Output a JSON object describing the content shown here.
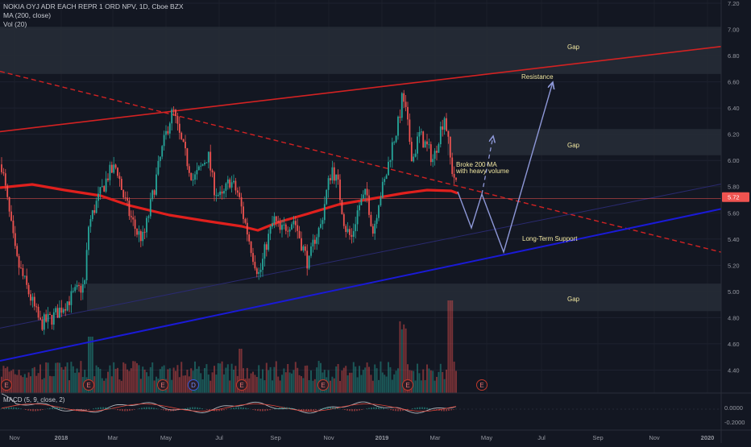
{
  "header": {
    "symbol_line": "NOKIA OYJ ADR EACH REPR 1 ORD NPV, 1D, Cboe BZX",
    "ma_line": "MA (200, close)",
    "vol_line": "Vol (20)",
    "macd_line": "MACD (5, 9, close, 2)"
  },
  "chart_data": {
    "type": "candlestick",
    "ylim": [
      4.2,
      7.2
    ],
    "y_ticks": [
      "7.20",
      "7.00",
      "6.80",
      "6.60",
      "6.40",
      "6.20",
      "6.00",
      "5.80",
      "5.60",
      "5.40",
      "5.20",
      "5.00",
      "4.80",
      "4.60",
      "4.40"
    ],
    "x_ticks": [
      "Nov",
      "2018",
      "Mar",
      "May",
      "Jul",
      "Sep",
      "Nov",
      "2019",
      "Mar",
      "May",
      "Jul",
      "Sep",
      "Nov",
      "2020"
    ],
    "last_price": "5.72",
    "macd_ticks": [
      "0.0000",
      "-0.2000"
    ],
    "price_path": [
      [
        0,
        6.05
      ],
      [
        10,
        5.65
      ],
      [
        20,
        5.25
      ],
      [
        35,
        5.0
      ],
      [
        50,
        4.75
      ],
      [
        65,
        4.8
      ],
      [
        80,
        4.9
      ],
      [
        95,
        5.0
      ],
      [
        105,
        5.05
      ],
      [
        110,
        5.5
      ],
      [
        118,
        5.65
      ],
      [
        125,
        5.75
      ],
      [
        135,
        5.9
      ],
      [
        145,
        5.95
      ],
      [
        152,
        5.75
      ],
      [
        160,
        5.6
      ],
      [
        170,
        5.45
      ],
      [
        178,
        5.4
      ],
      [
        190,
        5.75
      ],
      [
        200,
        6.05
      ],
      [
        210,
        6.3
      ],
      [
        215,
        6.38
      ],
      [
        222,
        6.2
      ],
      [
        232,
        6.0
      ],
      [
        240,
        5.85
      ],
      [
        250,
        5.95
      ],
      [
        258,
        6.05
      ],
      [
        265,
        5.8
      ],
      [
        275,
        5.7
      ],
      [
        285,
        5.85
      ],
      [
        295,
        5.75
      ],
      [
        305,
        5.5
      ],
      [
        315,
        5.25
      ],
      [
        322,
        5.12
      ],
      [
        330,
        5.35
      ],
      [
        340,
        5.55
      ],
      [
        348,
        5.45
      ],
      [
        355,
        5.5
      ],
      [
        365,
        5.55
      ],
      [
        375,
        5.35
      ],
      [
        383,
        5.2
      ],
      [
        390,
        5.4
      ],
      [
        398,
        5.5
      ],
      [
        405,
        5.75
      ],
      [
        412,
        5.95
      ],
      [
        420,
        5.8
      ],
      [
        428,
        5.5
      ],
      [
        436,
        5.4
      ],
      [
        445,
        5.65
      ],
      [
        455,
        5.75
      ],
      [
        463,
        5.45
      ],
      [
        470,
        5.7
      ],
      [
        478,
        5.85
      ],
      [
        486,
        6.1
      ],
      [
        495,
        6.3
      ],
      [
        500,
        6.55
      ],
      [
        505,
        6.3
      ],
      [
        512,
        6.0
      ],
      [
        520,
        6.2
      ],
      [
        530,
        6.1
      ],
      [
        538,
        6.0
      ],
      [
        545,
        6.2
      ],
      [
        552,
        6.35
      ],
      [
        557,
        6.1
      ],
      [
        560,
        5.95
      ],
      [
        565,
        5.85
      ],
      [
        568,
        5.72
      ]
    ],
    "volume_bars": "one bar per candle, tall spikes near Jan 2019 and mid-Mar 2019",
    "annotations": {
      "gap_top": "Gap",
      "gap_mid": "Gap",
      "gap_bottom": "Gap",
      "resistance": "Resistance",
      "support": "Long-Term Support",
      "broke_ma_line1": "Broke 200 MA",
      "broke_ma_line2": "with heavy volume"
    },
    "earnings_markers": [
      "E",
      "E",
      "E",
      "D",
      "E",
      "E",
      "E",
      "E"
    ],
    "colors": {
      "background": "#131722",
      "up": "#26a69a",
      "down": "#ef5350",
      "ma200": "#e0201d",
      "resistance": "#d32222",
      "support": "#1a1ad6",
      "forecast": "#8e98d8",
      "gap_box": "#262b36",
      "text": "#b2b5be",
      "annotation_text": "#f0e6a0",
      "price_badge": "#ef5350"
    }
  }
}
